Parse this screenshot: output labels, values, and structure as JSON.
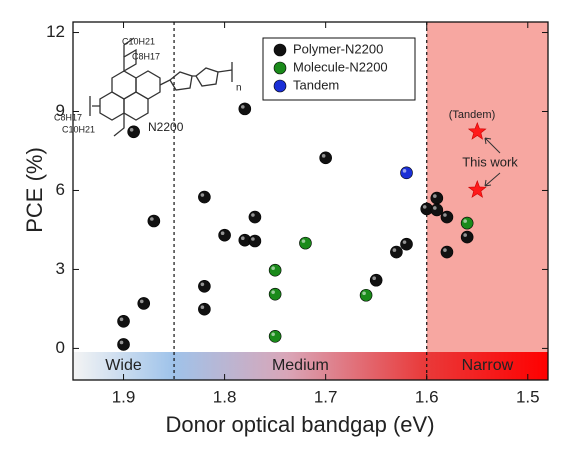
{
  "chart_data": {
    "type": "scatter",
    "xlabel": "Donor optical bandgap (eV)",
    "ylabel": "PCE (%)",
    "xlim": [
      1.95,
      1.48
    ],
    "ylim": [
      -1.2,
      12.4
    ],
    "xticks": [
      1.9,
      1.8,
      1.7,
      1.6,
      1.5
    ],
    "yticks": [
      0,
      3,
      6,
      9,
      12
    ],
    "series": [
      {
        "name": "Polymer-N2200",
        "color": "#111111",
        "x": [
          1.9,
          1.9,
          1.88,
          1.87,
          1.89,
          1.82,
          1.82,
          1.82,
          1.8,
          1.78,
          1.78,
          1.77,
          1.77,
          1.7,
          1.65,
          1.63,
          1.62,
          1.6,
          1.59,
          1.59,
          1.58,
          1.58,
          1.56
        ],
        "y": [
          0.15,
          1.03,
          1.71,
          4.84,
          8.23,
          5.75,
          2.36,
          1.49,
          4.3,
          9.1,
          4.11,
          4.99,
          4.08,
          7.24,
          2.59,
          3.66,
          3.96,
          5.3,
          5.71,
          5.26,
          4.99,
          3.66,
          4.23
        ]
      },
      {
        "name": "Molecule-N2200",
        "color": "#1a8a1a",
        "x": [
          1.75,
          1.75,
          1.75,
          1.72,
          1.66,
          1.56
        ],
        "y": [
          2.97,
          2.06,
          0.46,
          4.0,
          2.02,
          4.76
        ]
      },
      {
        "name": "Tandem",
        "color": "#1a2fd6",
        "x": [
          1.62
        ],
        "y": [
          6.67
        ]
      }
    ],
    "highlight": {
      "color": "#ff1a1a",
      "x": [
        1.55,
        1.55
      ],
      "y": [
        8.23,
        6.02
      ]
    },
    "annotations": [
      "(Tandem)",
      "This work"
    ],
    "vlines": [
      1.85,
      1.6
    ],
    "bands": [
      {
        "label": "Wide",
        "from": 1.95,
        "to": 1.85
      },
      {
        "label": "Medium",
        "from": 1.85,
        "to": 1.6
      },
      {
        "label": "Narrow",
        "from": 1.6,
        "to": 1.48
      }
    ],
    "structure": {
      "label": "N2200",
      "chains": [
        "C10H21",
        "C8H17",
        "C8H17",
        "C10H21"
      ],
      "repeat": "n"
    }
  }
}
